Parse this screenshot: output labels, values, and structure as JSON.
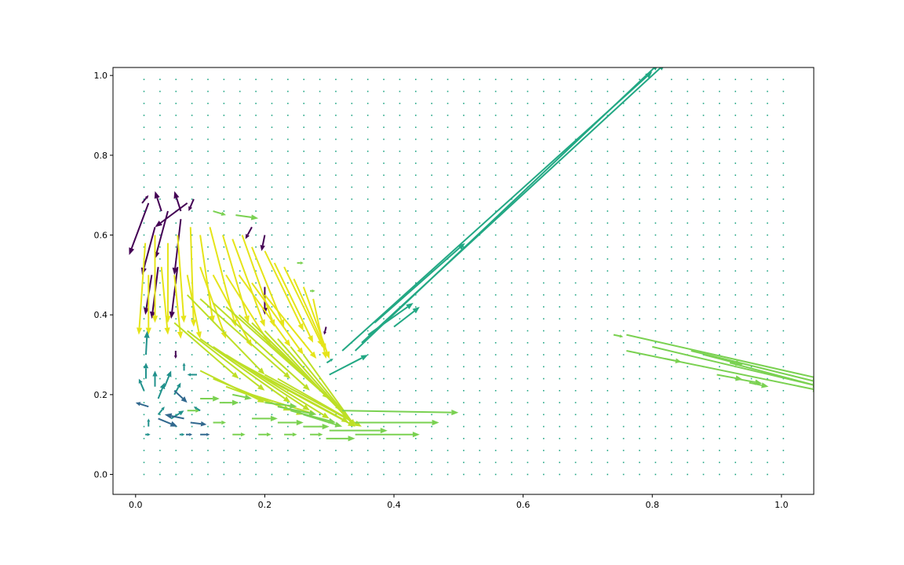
{
  "chart_data": {
    "type": "quiver",
    "title": "",
    "xlabel": "",
    "ylabel": "",
    "xlim": [
      -0.035,
      1.05
    ],
    "ylim": [
      -0.05,
      1.02
    ],
    "grid": false,
    "legend": "none",
    "x_ticks": [
      "0.0",
      "0.2",
      "0.4",
      "0.6",
      "0.8",
      "1.0"
    ],
    "y_ticks": [
      "0.0",
      "0.2",
      "0.4",
      "0.6",
      "0.8",
      "1.0"
    ],
    "grid_points": {
      "x_start": 0.013,
      "x_step": 0.02475,
      "x_count": 41,
      "y_start": 0.0,
      "y_step": 0.03,
      "y_count": 34,
      "background_color": "#21a685"
    },
    "colormap": "viridis",
    "colors": {
      "dark_purple": "#440154",
      "teal": "#21918c",
      "blue_teal": "#31688e",
      "green": "#22a884",
      "light_green": "#7ad151",
      "yellow_green": "#bddf26",
      "yellow": "#e5e419"
    },
    "arrows": [
      {
        "x": 0.01,
        "y": 0.68,
        "u": 0.01,
        "v": 0.02,
        "c": "dark_purple"
      },
      {
        "x": 0.04,
        "y": 0.66,
        "u": -0.01,
        "v": 0.05,
        "c": "dark_purple"
      },
      {
        "x": 0.07,
        "y": 0.66,
        "u": -0.01,
        "v": 0.05,
        "c": "dark_purple"
      },
      {
        "x": 0.09,
        "y": 0.69,
        "u": -0.008,
        "v": -0.03,
        "c": "dark_purple"
      },
      {
        "x": 0.02,
        "y": 0.68,
        "u": -0.03,
        "v": -0.13,
        "c": "dark_purple"
      },
      {
        "x": 0.03,
        "y": 0.62,
        "u": -0.02,
        "v": -0.12,
        "c": "dark_purple"
      },
      {
        "x": 0.05,
        "y": 0.66,
        "u": -0.02,
        "v": -0.12,
        "c": "dark_purple"
      },
      {
        "x": 0.07,
        "y": 0.64,
        "u": -0.01,
        "v": -0.14,
        "c": "dark_purple"
      },
      {
        "x": 0.08,
        "y": 0.68,
        "u": -0.05,
        "v": -0.06,
        "c": "dark_purple"
      },
      {
        "x": 0.025,
        "y": 0.5,
        "u": -0.01,
        "v": -0.1,
        "c": "dark_purple"
      },
      {
        "x": 0.035,
        "y": 0.52,
        "u": -0.01,
        "v": -0.13,
        "c": "dark_purple"
      },
      {
        "x": 0.065,
        "y": 0.52,
        "u": -0.01,
        "v": -0.13,
        "c": "dark_purple"
      },
      {
        "x": 0.2,
        "y": 0.47,
        "u": 0.0,
        "v": -0.07,
        "c": "dark_purple"
      },
      {
        "x": 0.2,
        "y": 0.6,
        "u": -0.005,
        "v": -0.04,
        "c": "dark_purple"
      },
      {
        "x": 0.18,
        "y": 0.62,
        "u": -0.01,
        "v": -0.03,
        "c": "dark_purple"
      },
      {
        "x": 0.295,
        "y": 0.37,
        "u": -0.003,
        "v": -0.02,
        "c": "dark_purple"
      },
      {
        "x": 0.062,
        "y": 0.31,
        "u": 0.0,
        "v": -0.02,
        "c": "dark_purple"
      },
      {
        "x": 0.015,
        "y": 0.58,
        "u": -0.01,
        "v": -0.23,
        "c": "yellow"
      },
      {
        "x": 0.03,
        "y": 0.6,
        "u": 0.0,
        "v": -0.22,
        "c": "yellow"
      },
      {
        "x": 0.05,
        "y": 0.58,
        "u": 0.0,
        "v": -0.2,
        "c": "yellow"
      },
      {
        "x": 0.065,
        "y": 0.6,
        "u": 0.01,
        "v": -0.22,
        "c": "yellow"
      },
      {
        "x": 0.085,
        "y": 0.62,
        "u": 0.005,
        "v": -0.25,
        "c": "yellow"
      },
      {
        "x": 0.1,
        "y": 0.6,
        "u": 0.02,
        "v": -0.22,
        "c": "yellow"
      },
      {
        "x": 0.115,
        "y": 0.62,
        "u": 0.04,
        "v": -0.25,
        "c": "yellow"
      },
      {
        "x": 0.135,
        "y": 0.6,
        "u": 0.04,
        "v": -0.22,
        "c": "yellow"
      },
      {
        "x": 0.15,
        "y": 0.59,
        "u": 0.05,
        "v": -0.22,
        "c": "yellow"
      },
      {
        "x": 0.165,
        "y": 0.6,
        "u": 0.05,
        "v": -0.23,
        "c": "yellow"
      },
      {
        "x": 0.18,
        "y": 0.57,
        "u": 0.05,
        "v": -0.2,
        "c": "yellow"
      },
      {
        "x": 0.2,
        "y": 0.56,
        "u": 0.06,
        "v": -0.2,
        "c": "yellow"
      },
      {
        "x": 0.215,
        "y": 0.53,
        "u": 0.06,
        "v": -0.2,
        "c": "yellow"
      },
      {
        "x": 0.23,
        "y": 0.52,
        "u": 0.06,
        "v": -0.2,
        "c": "yellow"
      },
      {
        "x": 0.245,
        "y": 0.49,
        "u": 0.05,
        "v": -0.18,
        "c": "yellow"
      },
      {
        "x": 0.26,
        "y": 0.47,
        "u": 0.04,
        "v": -0.18,
        "c": "yellow"
      },
      {
        "x": 0.275,
        "y": 0.44,
        "u": 0.02,
        "v": -0.15,
        "c": "yellow"
      },
      {
        "x": 0.02,
        "y": 0.5,
        "u": 0.0,
        "v": -0.15,
        "c": "yellow"
      },
      {
        "x": 0.04,
        "y": 0.52,
        "u": 0.01,
        "v": -0.17,
        "c": "yellow"
      },
      {
        "x": 0.06,
        "y": 0.5,
        "u": 0.01,
        "v": -0.16,
        "c": "yellow"
      },
      {
        "x": 0.08,
        "y": 0.5,
        "u": 0.02,
        "v": -0.16,
        "c": "yellow"
      },
      {
        "x": 0.1,
        "y": 0.52,
        "u": 0.04,
        "v": -0.18,
        "c": "yellow"
      },
      {
        "x": 0.12,
        "y": 0.5,
        "u": 0.06,
        "v": -0.18,
        "c": "yellow"
      },
      {
        "x": 0.14,
        "y": 0.5,
        "u": 0.07,
        "v": -0.18,
        "c": "yellow"
      },
      {
        "x": 0.16,
        "y": 0.5,
        "u": 0.08,
        "v": -0.18,
        "c": "yellow"
      },
      {
        "x": 0.18,
        "y": 0.48,
        "u": 0.08,
        "v": -0.18,
        "c": "yellow"
      },
      {
        "x": 0.2,
        "y": 0.45,
        "u": 0.08,
        "v": -0.16,
        "c": "yellow"
      },
      {
        "x": 0.08,
        "y": 0.45,
        "u": 0.12,
        "v": -0.2,
        "c": "yellow_green"
      },
      {
        "x": 0.1,
        "y": 0.44,
        "u": 0.14,
        "v": -0.2,
        "c": "yellow_green"
      },
      {
        "x": 0.12,
        "y": 0.43,
        "u": 0.15,
        "v": -0.22,
        "c": "yellow_green"
      },
      {
        "x": 0.14,
        "y": 0.42,
        "u": 0.16,
        "v": -0.23,
        "c": "yellow_green"
      },
      {
        "x": 0.16,
        "y": 0.4,
        "u": 0.16,
        "v": -0.24,
        "c": "yellow_green"
      },
      {
        "x": 0.18,
        "y": 0.38,
        "u": 0.15,
        "v": -0.24,
        "c": "yellow_green"
      },
      {
        "x": 0.2,
        "y": 0.36,
        "u": 0.14,
        "v": -0.24,
        "c": "yellow_green"
      },
      {
        "x": 0.22,
        "y": 0.34,
        "u": 0.12,
        "v": -0.22,
        "c": "yellow_green"
      },
      {
        "x": 0.24,
        "y": 0.32,
        "u": 0.1,
        "v": -0.2,
        "c": "yellow_green"
      },
      {
        "x": 0.26,
        "y": 0.3,
        "u": 0.08,
        "v": -0.18,
        "c": "yellow_green"
      },
      {
        "x": 0.06,
        "y": 0.38,
        "u": 0.1,
        "v": -0.14,
        "c": "yellow_green"
      },
      {
        "x": 0.08,
        "y": 0.36,
        "u": 0.12,
        "v": -0.15,
        "c": "yellow_green"
      },
      {
        "x": 0.1,
        "y": 0.34,
        "u": 0.14,
        "v": -0.16,
        "c": "yellow_green"
      },
      {
        "x": 0.12,
        "y": 0.32,
        "u": 0.15,
        "v": -0.16,
        "c": "yellow_green"
      },
      {
        "x": 0.14,
        "y": 0.3,
        "u": 0.16,
        "v": -0.16,
        "c": "yellow_green"
      },
      {
        "x": 0.16,
        "y": 0.28,
        "u": 0.17,
        "v": -0.15,
        "c": "yellow_green"
      },
      {
        "x": 0.18,
        "y": 0.26,
        "u": 0.16,
        "v": -0.14,
        "c": "yellow_green"
      },
      {
        "x": 0.2,
        "y": 0.25,
        "u": 0.15,
        "v": -0.13,
        "c": "yellow_green"
      },
      {
        "x": 0.22,
        "y": 0.24,
        "u": 0.13,
        "v": -0.12,
        "c": "yellow_green"
      },
      {
        "x": 0.1,
        "y": 0.26,
        "u": 0.1,
        "v": -0.08,
        "c": "yellow_green"
      },
      {
        "x": 0.12,
        "y": 0.24,
        "u": 0.12,
        "v": -0.08,
        "c": "yellow_green"
      },
      {
        "x": 0.14,
        "y": 0.22,
        "u": 0.12,
        "v": -0.07,
        "c": "yellow_green"
      },
      {
        "x": 0.16,
        "y": 0.21,
        "u": 0.12,
        "v": -0.06,
        "c": "yellow_green"
      },
      {
        "x": 0.12,
        "y": 0.66,
        "u": 0.02,
        "v": -0.01,
        "c": "light_green"
      },
      {
        "x": 0.155,
        "y": 0.65,
        "u": 0.035,
        "v": -0.008,
        "c": "light_green"
      },
      {
        "x": 0.25,
        "y": 0.53,
        "u": 0.01,
        "v": 0.0,
        "c": "light_green"
      },
      {
        "x": 0.27,
        "y": 0.46,
        "u": 0.008,
        "v": 0.0,
        "c": "light_green"
      },
      {
        "x": 0.2,
        "y": 0.18,
        "u": 0.05,
        "v": -0.01,
        "c": "light_green"
      },
      {
        "x": 0.22,
        "y": 0.17,
        "u": 0.06,
        "v": -0.02,
        "c": "light_green"
      },
      {
        "x": 0.24,
        "y": 0.16,
        "u": 0.07,
        "v": -0.03,
        "c": "light_green"
      },
      {
        "x": 0.26,
        "y": 0.15,
        "u": 0.06,
        "v": -0.03,
        "c": "light_green"
      },
      {
        "x": 0.18,
        "y": 0.14,
        "u": 0.04,
        "v": 0.0,
        "c": "light_green"
      },
      {
        "x": 0.22,
        "y": 0.13,
        "u": 0.04,
        "v": 0.0,
        "c": "light_green"
      },
      {
        "x": 0.26,
        "y": 0.12,
        "u": 0.04,
        "v": 0.0,
        "c": "light_green"
      },
      {
        "x": 0.15,
        "y": 0.2,
        "u": 0.03,
        "v": -0.01,
        "c": "light_green"
      },
      {
        "x": 0.13,
        "y": 0.18,
        "u": 0.03,
        "v": 0.0,
        "c": "light_green"
      },
      {
        "x": 0.1,
        "y": 0.19,
        "u": 0.03,
        "v": 0.0,
        "c": "light_green"
      },
      {
        "x": 0.08,
        "y": 0.16,
        "u": 0.02,
        "v": 0.0,
        "c": "light_green"
      },
      {
        "x": 0.12,
        "y": 0.13,
        "u": 0.02,
        "v": 0.0,
        "c": "light_green"
      },
      {
        "x": 0.15,
        "y": 0.1,
        "u": 0.02,
        "v": 0.0,
        "c": "light_green"
      },
      {
        "x": 0.19,
        "y": 0.1,
        "u": 0.02,
        "v": 0.0,
        "c": "light_green"
      },
      {
        "x": 0.23,
        "y": 0.1,
        "u": 0.02,
        "v": 0.0,
        "c": "light_green"
      },
      {
        "x": 0.27,
        "y": 0.1,
        "u": 0.02,
        "v": 0.0,
        "c": "light_green"
      },
      {
        "x": 0.295,
        "y": 0.09,
        "u": 0.045,
        "v": 0.0,
        "c": "light_green"
      },
      {
        "x": 0.32,
        "y": 0.16,
        "u": 0.18,
        "v": -0.005,
        "c": "light_green"
      },
      {
        "x": 0.34,
        "y": 0.13,
        "u": 0.13,
        "v": 0.0,
        "c": "light_green"
      },
      {
        "x": 0.34,
        "y": 0.1,
        "u": 0.1,
        "v": 0.0,
        "c": "light_green"
      },
      {
        "x": 0.3,
        "y": 0.11,
        "u": 0.09,
        "v": 0.0,
        "c": "light_green"
      },
      {
        "x": 0.76,
        "y": 0.35,
        "u": 0.3,
        "v": -0.11,
        "c": "light_green"
      },
      {
        "x": 0.76,
        "y": 0.31,
        "u": 0.3,
        "v": -0.1,
        "c": "light_green"
      },
      {
        "x": 0.8,
        "y": 0.32,
        "u": 0.26,
        "v": -0.1,
        "c": "light_green"
      },
      {
        "x": 0.86,
        "y": 0.31,
        "u": 0.2,
        "v": -0.08,
        "c": "light_green"
      },
      {
        "x": 0.92,
        "y": 0.28,
        "u": 0.14,
        "v": -0.06,
        "c": "light_green"
      },
      {
        "x": 0.74,
        "y": 0.35,
        "u": 0.015,
        "v": -0.005,
        "c": "light_green"
      },
      {
        "x": 0.82,
        "y": 0.29,
        "u": 0.025,
        "v": -0.008,
        "c": "light_green"
      },
      {
        "x": 0.9,
        "y": 0.25,
        "u": 0.04,
        "v": -0.012,
        "c": "light_green"
      },
      {
        "x": 0.93,
        "y": 0.24,
        "u": 0.04,
        "v": -0.012,
        "c": "light_green"
      },
      {
        "x": 0.95,
        "y": 0.23,
        "u": 0.03,
        "v": -0.01,
        "c": "light_green"
      },
      {
        "x": 0.88,
        "y": 0.3,
        "u": 0.06,
        "v": -0.025,
        "c": "light_green"
      },
      {
        "x": 0.32,
        "y": 0.31,
        "u": 0.48,
        "v": 0.7,
        "c": "green"
      },
      {
        "x": 0.34,
        "y": 0.31,
        "u": 0.47,
        "v": 0.72,
        "c": "green"
      },
      {
        "x": 0.35,
        "y": 0.33,
        "u": 0.47,
        "v": 0.7,
        "c": "green"
      },
      {
        "x": 0.37,
        "y": 0.38,
        "u": 0.14,
        "v": 0.2,
        "c": "green"
      },
      {
        "x": 0.36,
        "y": 0.35,
        "u": 0.07,
        "v": 0.08,
        "c": "green"
      },
      {
        "x": 0.4,
        "y": 0.37,
        "u": 0.04,
        "v": 0.05,
        "c": "green"
      },
      {
        "x": 0.3,
        "y": 0.25,
        "u": 0.06,
        "v": 0.05,
        "c": "green"
      },
      {
        "x": 0.296,
        "y": 0.28,
        "u": 0.01,
        "v": 0.01,
        "c": "green"
      },
      {
        "x": 0.016,
        "y": 0.3,
        "u": 0.002,
        "v": 0.06,
        "c": "teal"
      },
      {
        "x": 0.016,
        "y": 0.24,
        "u": 0.0,
        "v": 0.04,
        "c": "teal"
      },
      {
        "x": 0.013,
        "y": 0.21,
        "u": -0.008,
        "v": 0.03,
        "c": "teal"
      },
      {
        "x": 0.03,
        "y": 0.22,
        "u": 0.0,
        "v": 0.04,
        "c": "teal"
      },
      {
        "x": 0.035,
        "y": 0.19,
        "u": 0.01,
        "v": 0.04,
        "c": "teal"
      },
      {
        "x": 0.045,
        "y": 0.22,
        "u": 0.01,
        "v": 0.04,
        "c": "teal"
      },
      {
        "x": 0.06,
        "y": 0.2,
        "u": 0.01,
        "v": 0.03,
        "c": "teal"
      },
      {
        "x": 0.075,
        "y": 0.26,
        "u": 0.0,
        "v": 0.02,
        "c": "teal"
      },
      {
        "x": 0.055,
        "y": 0.14,
        "u": 0.02,
        "v": 0.02,
        "c": "teal"
      },
      {
        "x": 0.035,
        "y": 0.15,
        "u": 0.01,
        "v": 0.02,
        "c": "teal"
      },
      {
        "x": 0.02,
        "y": 0.12,
        "u": 0.0,
        "v": 0.02,
        "c": "teal"
      },
      {
        "x": 0.06,
        "y": 0.21,
        "u": 0.02,
        "v": -0.03,
        "c": "blue_teal"
      },
      {
        "x": 0.02,
        "y": 0.17,
        "u": -0.02,
        "v": 0.01,
        "c": "blue_teal"
      },
      {
        "x": 0.075,
        "y": 0.14,
        "u": -0.03,
        "v": 0.01,
        "c": "blue_teal"
      },
      {
        "x": 0.085,
        "y": 0.13,
        "u": 0.025,
        "v": -0.005,
        "c": "blue_teal"
      },
      {
        "x": 0.035,
        "y": 0.14,
        "u": 0.03,
        "v": -0.02,
        "c": "blue_teal"
      },
      {
        "x": 0.1,
        "y": 0.1,
        "u": 0.015,
        "v": 0.0,
        "c": "blue_teal"
      },
      {
        "x": 0.078,
        "y": 0.1,
        "u": 0.01,
        "v": 0.0,
        "c": "blue_teal"
      },
      {
        "x": 0.1,
        "y": 0.16,
        "u": -0.01,
        "v": 0.01,
        "c": "teal"
      },
      {
        "x": 0.095,
        "y": 0.25,
        "u": -0.015,
        "v": 0.0,
        "c": "teal"
      },
      {
        "x": 0.068,
        "y": 0.1,
        "u": 0.008,
        "v": 0.0,
        "c": "teal"
      },
      {
        "x": 0.015,
        "y": 0.1,
        "u": 0.008,
        "v": 0.0,
        "c": "teal"
      }
    ]
  }
}
